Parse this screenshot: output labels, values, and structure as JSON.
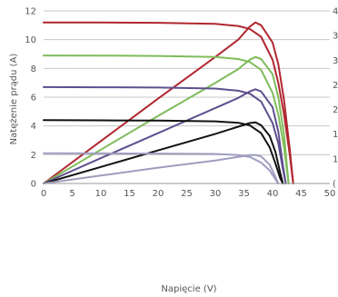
{
  "chart_data": {
    "type": "line",
    "title": "",
    "xlabel": "Napięcie (V)",
    "ylabel": "Natężenie prądu (A)",
    "xlim": [
      0,
      50
    ],
    "ylim": [
      0,
      12
    ],
    "x_ticks": [
      0,
      5,
      10,
      15,
      20,
      25,
      30,
      35,
      40,
      45,
      50
    ],
    "y_ticks": [
      0,
      2,
      4,
      6,
      8,
      10,
      12
    ],
    "y2_ticks_visible": [
      "4",
      "3",
      "3",
      "2",
      "2",
      "1",
      "1",
      "("
    ],
    "grid": "horizontal",
    "legend": "none",
    "series": [
      {
        "kind": "current",
        "color": "#b0272f",
        "x": [
          0,
          10,
          20,
          30,
          34,
          36,
          38,
          40,
          41,
          42,
          43,
          43.6
        ],
        "y": [
          11.2,
          11.19,
          11.17,
          11.1,
          10.95,
          10.75,
          10.2,
          8.6,
          7.0,
          4.8,
          2.0,
          0
        ]
      },
      {
        "kind": "power",
        "color": "#b0272f",
        "x": [
          0,
          10,
          20,
          30,
          34,
          36,
          37,
          38,
          40,
          41,
          42,
          43,
          43.6
        ],
        "y": [
          0,
          2.95,
          5.9,
          8.8,
          10.0,
          10.9,
          11.2,
          11.0,
          9.8,
          8.3,
          5.8,
          2.4,
          0
        ]
      },
      {
        "kind": "current",
        "color": "#7fbc5a",
        "x": [
          0,
          10,
          20,
          30,
          34,
          36,
          38,
          40,
          41,
          42,
          42.8
        ],
        "y": [
          8.9,
          8.89,
          8.87,
          8.8,
          8.65,
          8.45,
          7.9,
          6.3,
          4.8,
          2.5,
          0
        ]
      },
      {
        "kind": "power",
        "color": "#7fbc5a",
        "x": [
          0,
          10,
          20,
          30,
          34,
          36,
          37,
          38,
          40,
          41,
          42,
          42.8
        ],
        "y": [
          0,
          2.35,
          4.7,
          7.0,
          7.95,
          8.6,
          8.8,
          8.65,
          7.6,
          6.0,
          3.4,
          0
        ]
      },
      {
        "kind": "current",
        "color": "#5e4f8e",
        "x": [
          0,
          10,
          20,
          30,
          34,
          36,
          38,
          40,
          41,
          41.8,
          42.3
        ],
        "y": [
          6.7,
          6.69,
          6.67,
          6.6,
          6.45,
          6.25,
          5.7,
          4.2,
          2.8,
          1.0,
          0
        ]
      },
      {
        "kind": "power",
        "color": "#5e4f8e",
        "x": [
          0,
          10,
          20,
          30,
          34,
          36,
          37,
          38,
          40,
          41,
          41.8,
          42.3
        ],
        "y": [
          0,
          1.76,
          3.5,
          5.25,
          5.95,
          6.4,
          6.55,
          6.4,
          5.3,
          3.6,
          1.3,
          0
        ]
      },
      {
        "kind": "current",
        "color": "#111111",
        "x": [
          0,
          10,
          20,
          30,
          34,
          36,
          38,
          39.5,
          40.5,
          41.3,
          41.8
        ],
        "y": [
          4.4,
          4.39,
          4.37,
          4.32,
          4.22,
          4.05,
          3.5,
          2.5,
          1.4,
          0.4,
          0
        ]
      },
      {
        "kind": "power",
        "color": "#111111",
        "x": [
          0,
          10,
          20,
          30,
          34,
          36,
          37,
          38,
          39.5,
          40.5,
          41.3,
          41.8
        ],
        "y": [
          0,
          1.15,
          2.3,
          3.45,
          3.95,
          4.2,
          4.25,
          4.05,
          3.3,
          2.2,
          0.8,
          0
        ]
      },
      {
        "kind": "current",
        "color": "#9f9dbf",
        "x": [
          0,
          10,
          20,
          30,
          34,
          36,
          38,
          39.5,
          40.4,
          41.0
        ],
        "y": [
          2.1,
          2.09,
          2.08,
          2.05,
          1.98,
          1.85,
          1.45,
          0.9,
          0.35,
          0
        ]
      },
      {
        "kind": "power",
        "color": "#9f9dbf",
        "x": [
          0,
          10,
          20,
          30,
          34,
          36,
          37,
          38,
          39.5,
          40.4,
          41.0
        ],
        "y": [
          0,
          0.55,
          1.1,
          1.6,
          1.85,
          1.97,
          1.98,
          1.88,
          1.3,
          0.55,
          0
        ]
      }
    ]
  }
}
